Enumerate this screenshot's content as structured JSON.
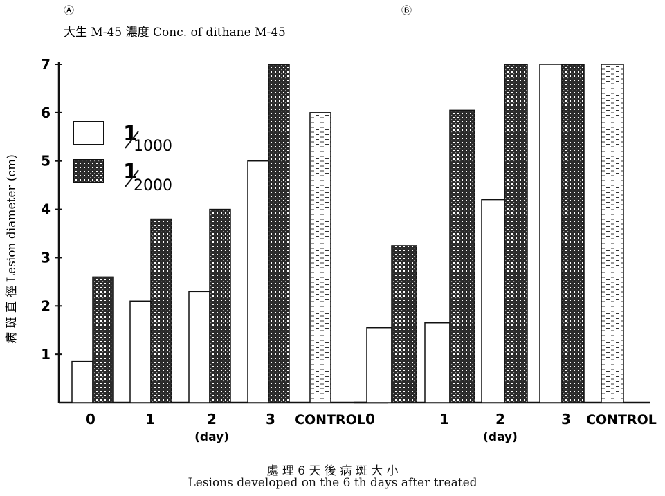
{
  "header": {
    "panel_a_mark": "Ⓐ",
    "panel_b_mark": "Ⓑ",
    "legend_title": "大生 M-45 濃度  Conc. of dithane M-45"
  },
  "legend": {
    "entries": [
      {
        "label": "1/1000",
        "numerator": "1",
        "denominator": "1000",
        "pattern": "white"
      },
      {
        "label": "1/2000",
        "numerator": "1",
        "denominator": "2000",
        "pattern": "checker"
      }
    ]
  },
  "caption": {
    "zh": "處 理 6 天 後 病 斑 大 小",
    "en": "Lesions developed on the 6 th days after treated"
  },
  "colors": {
    "ink": "#111111",
    "dark_fill": "#2b2b2b",
    "light_fill": "#ffffff"
  },
  "chart_data": [
    {
      "panel": "Ⓐ",
      "type": "bar",
      "ylabel": "病 斑 直 徑  Lesion diameter (cm)",
      "xlabel": "(day)",
      "ylim": [
        0,
        7
      ],
      "yticks": [
        "1",
        "2",
        "3",
        "4",
        "5",
        "6",
        "7"
      ],
      "categories": [
        "0",
        "1",
        "2",
        "3",
        "CONTROL"
      ],
      "series": [
        {
          "name": "1/1000",
          "values": [
            0.85,
            2.1,
            2.3,
            5.0,
            null
          ]
        },
        {
          "name": "1/2000",
          "values": [
            2.6,
            3.8,
            4.0,
            7.0,
            null
          ]
        }
      ],
      "control": {
        "label": "CONTROL",
        "value": 6.0
      }
    },
    {
      "panel": "Ⓑ",
      "type": "bar",
      "xlabel": "(day)",
      "ylim": [
        0,
        7
      ],
      "categories": [
        "0",
        "1",
        "2",
        "3",
        "CONTROL"
      ],
      "series": [
        {
          "name": "1/1000",
          "values": [
            1.55,
            1.65,
            4.2,
            7.0,
            null
          ]
        },
        {
          "name": "1/2000",
          "values": [
            3.25,
            6.05,
            7.0,
            7.0,
            null
          ]
        }
      ],
      "control": {
        "label": "CONTROL",
        "value": 7.0
      }
    }
  ]
}
